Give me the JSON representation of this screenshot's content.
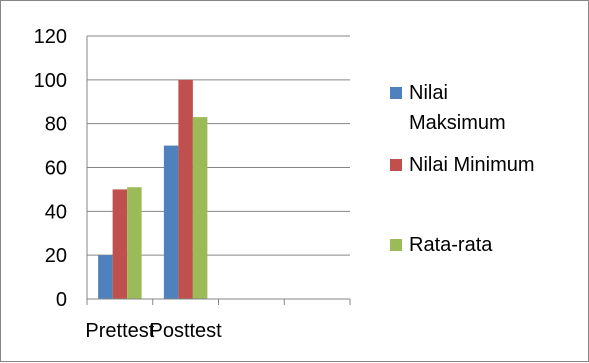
{
  "chart_data": {
    "type": "bar",
    "title": "",
    "xlabel": "",
    "ylabel": "",
    "categories": [
      "Prettest",
      "Posttest"
    ],
    "series": [
      {
        "name": "Nilai Maksimum",
        "values": [
          20,
          70
        ],
        "color": "#4F81BD"
      },
      {
        "name": "Nilai Minimum",
        "values": [
          50,
          100
        ],
        "color": "#C0504D"
      },
      {
        "name": "Rata-rata",
        "values": [
          51,
          83
        ],
        "color": "#9BBB59"
      }
    ],
    "ylim": [
      0,
      120
    ],
    "yticks": [
      0,
      20,
      40,
      60,
      80,
      100,
      120
    ],
    "grid": true,
    "legend_position": "right"
  }
}
